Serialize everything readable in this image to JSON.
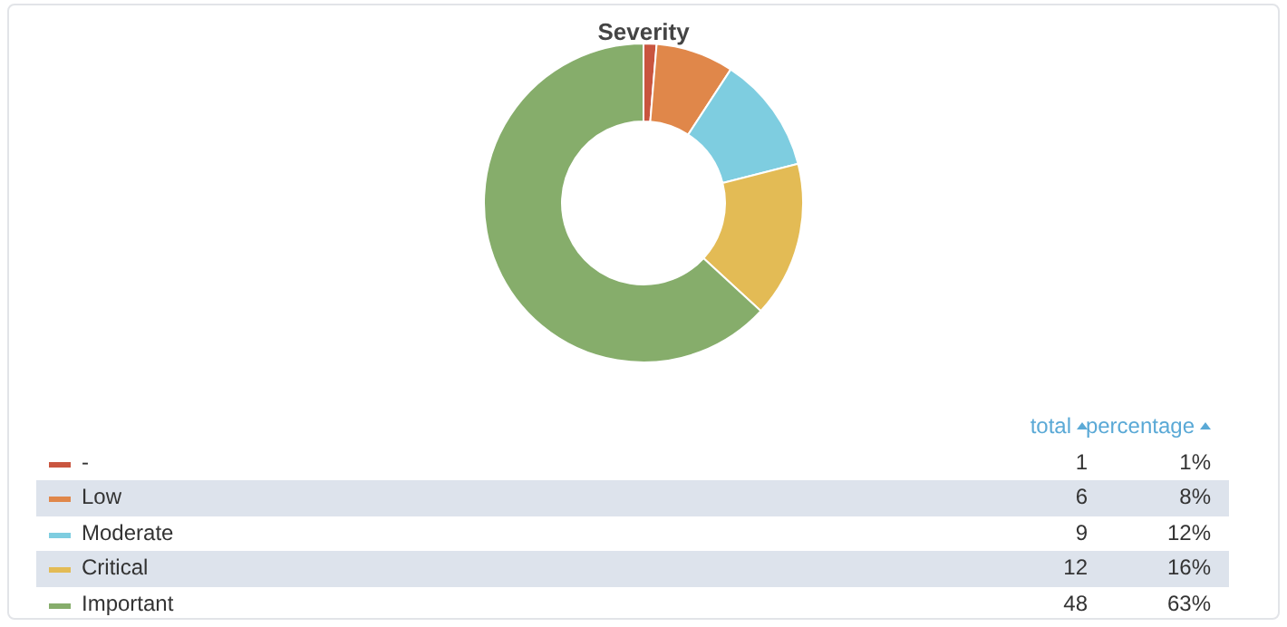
{
  "chart_data": {
    "type": "donut",
    "title": "Severity",
    "categories": [
      "-",
      "Low",
      "Moderate",
      "Critical",
      "Important"
    ],
    "values": [
      1,
      6,
      9,
      12,
      48
    ],
    "colors": [
      "#c9553f",
      "#e0874a",
      "#7ecde0",
      "#e3bb55",
      "#86ad6b"
    ],
    "data_labels": true,
    "annotations": [
      "total",
      "percentage",
      "1%",
      "8%",
      "12%",
      "16%",
      "63%"
    ],
    "legend": "bottom"
  }
}
